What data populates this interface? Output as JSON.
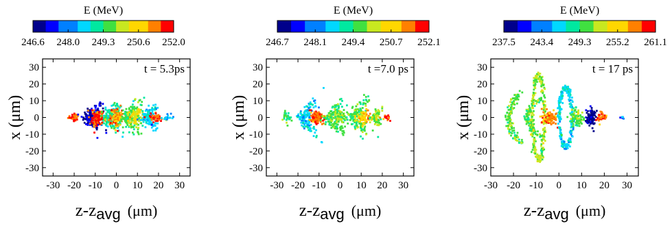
{
  "chart_data": [
    {
      "type": "scatter",
      "colorbar": {
        "label": "E (MeV)",
        "ticks": [
          "246.6",
          "248.0",
          "249.3",
          "250.6",
          "252.0"
        ],
        "range": [
          246.6,
          252.0
        ]
      },
      "annotation": "t = 5.3ps",
      "xlabel": {
        "main": "z-z",
        "sub": "avg",
        "unit": "(μm)"
      },
      "ylabel": "x (μm)",
      "xticks": [
        "-30",
        "-20",
        "-10",
        "0",
        "10",
        "20",
        "30"
      ],
      "yticks": [
        "30",
        "20",
        "10",
        "0",
        "-10",
        "-20",
        "-30"
      ],
      "xlim": [
        -35,
        35
      ],
      "ylim": [
        -35,
        35
      ],
      "colormap": [
        "#00008b",
        "#0000ff",
        "#0080ff",
        "#00d8ff",
        "#00e8a0",
        "#40e040",
        "#c8e820",
        "#ffd700",
        "#ff8000",
        "#ff0000"
      ],
      "clusters": [
        {
          "z": -20,
          "w": 2.0,
          "h": 2.5,
          "n": 40,
          "e": 251.5
        },
        {
          "z": -13,
          "w": 5,
          "h": 8,
          "n": 160,
          "e": 247.2,
          "shape": "chevron"
        },
        {
          "z": -9,
          "w": 3,
          "h": 5,
          "n": 110,
          "e": 251.5
        },
        {
          "z": -4,
          "w": 5,
          "h": 9,
          "n": 170,
          "e": 249.0,
          "shape": "chevron"
        },
        {
          "z": 0,
          "w": 3,
          "h": 6,
          "n": 120,
          "e": 251.0
        },
        {
          "z": 5,
          "w": 5,
          "h": 9,
          "n": 160,
          "e": 249.5,
          "shape": "chevron"
        },
        {
          "z": 9,
          "w": 3,
          "h": 5,
          "n": 100,
          "e": 250.3
        },
        {
          "z": 14,
          "w": 4,
          "h": 8,
          "n": 120,
          "e": 248.5,
          "shape": "chevron"
        },
        {
          "z": 19,
          "w": 3,
          "h": 3,
          "n": 50,
          "e": 251.5
        },
        {
          "z": 24,
          "w": 2,
          "h": 2,
          "n": 20,
          "e": 248.3
        }
      ]
    },
    {
      "type": "scatter",
      "colorbar": {
        "label": "E (MeV)",
        "ticks": [
          "246.7",
          "248.1",
          "249.4",
          "250.7",
          "252.1"
        ],
        "range": [
          246.7,
          252.1
        ]
      },
      "annotation": "t =7.0 ps",
      "xlabel": {
        "main": "z-z",
        "sub": "avg",
        "unit": "(μm)"
      },
      "ylabel": "x (μm)",
      "xticks": [
        "-30",
        "-20",
        "-10",
        "0",
        "10",
        "20",
        "30"
      ],
      "yticks": [
        "30",
        "20",
        "10",
        "0",
        "-10",
        "-20",
        "-30"
      ],
      "xlim": [
        -35,
        35
      ],
      "ylim": [
        -35,
        35
      ],
      "colormap": [
        "#00008b",
        "#0000ff",
        "#0080ff",
        "#00d8ff",
        "#00e8a0",
        "#40e040",
        "#c8e820",
        "#ffd700",
        "#ff8000",
        "#ff0000"
      ],
      "clusters": [
        {
          "z": -25,
          "w": 2,
          "h": 4,
          "n": 30,
          "e": 249.5
        },
        {
          "z": -18,
          "w": 4,
          "h": 11,
          "n": 140,
          "e": 248.6,
          "shape": "chevron"
        },
        {
          "z": -11,
          "w": 3,
          "h": 4,
          "n": 120,
          "e": 251.5
        },
        {
          "z": -5,
          "w": 5,
          "h": 11,
          "n": 140,
          "e": 249.6,
          "shape": "chevron"
        },
        {
          "z": 0,
          "w": 3,
          "h": 4,
          "n": 80,
          "e": 250.0
        },
        {
          "z": 6,
          "w": 5,
          "h": 11,
          "n": 140,
          "e": 249.6,
          "shape": "chevron"
        },
        {
          "z": 11,
          "w": 3,
          "h": 4,
          "n": 70,
          "e": 250.8
        },
        {
          "z": 16,
          "w": 3,
          "h": 6,
          "n": 80,
          "e": 249.9,
          "shape": "chevron"
        },
        {
          "z": 22,
          "w": 2,
          "h": 2,
          "n": 15,
          "e": 251.6
        }
      ]
    },
    {
      "type": "scatter",
      "colorbar": {
        "label": "E (MeV)",
        "ticks": [
          "237.5",
          "243.4",
          "249.3",
          "255.2",
          "261.1"
        ],
        "range": [
          237.5,
          261.1
        ]
      },
      "annotation": "t = 17 ps",
      "xlabel": {
        "main": "z-z",
        "sub": "avg",
        "unit": "(μm)"
      },
      "ylabel": "x (μm)",
      "xticks": [
        "-30",
        "-20",
        "-10",
        "0",
        "10",
        "20",
        "30"
      ],
      "yticks": [
        "30",
        "20",
        "10",
        "0",
        "-10",
        "-20",
        "-30"
      ],
      "xlim": [
        -30,
        35
      ],
      "ylim": [
        -35,
        35
      ],
      "colormap": [
        "#00008b",
        "#0000ff",
        "#0080ff",
        "#00d8ff",
        "#00e8a0",
        "#40e040",
        "#c8e820",
        "#ffd700",
        "#ff8000",
        "#ff0000"
      ],
      "clusters": [
        {
          "z": -22,
          "w": 4,
          "h": 16,
          "n": 140,
          "e": 250.5,
          "shape": "arc"
        },
        {
          "z": -14,
          "w": 5,
          "h": 12,
          "n": 120,
          "e": 250.8,
          "shape": "arc"
        },
        {
          "z": -9,
          "w": 3,
          "h": 27,
          "n": 260,
          "e": 252.0,
          "shape": "ring"
        },
        {
          "z": -4,
          "w": 3,
          "h": 4,
          "n": 120,
          "e": 257.5
        },
        {
          "z": 3,
          "w": 3,
          "h": 19,
          "n": 240,
          "e": 246.0,
          "shape": "ring"
        },
        {
          "z": 8,
          "w": 2.5,
          "h": 6,
          "n": 80,
          "e": 251.0
        },
        {
          "z": 14,
          "w": 2,
          "h": 6,
          "n": 90,
          "e": 238.5
        },
        {
          "z": 19,
          "w": 2,
          "h": 3,
          "n": 40,
          "e": 258.5
        },
        {
          "z": 28,
          "w": 1,
          "h": 1,
          "n": 6,
          "e": 244.0
        }
      ]
    }
  ]
}
